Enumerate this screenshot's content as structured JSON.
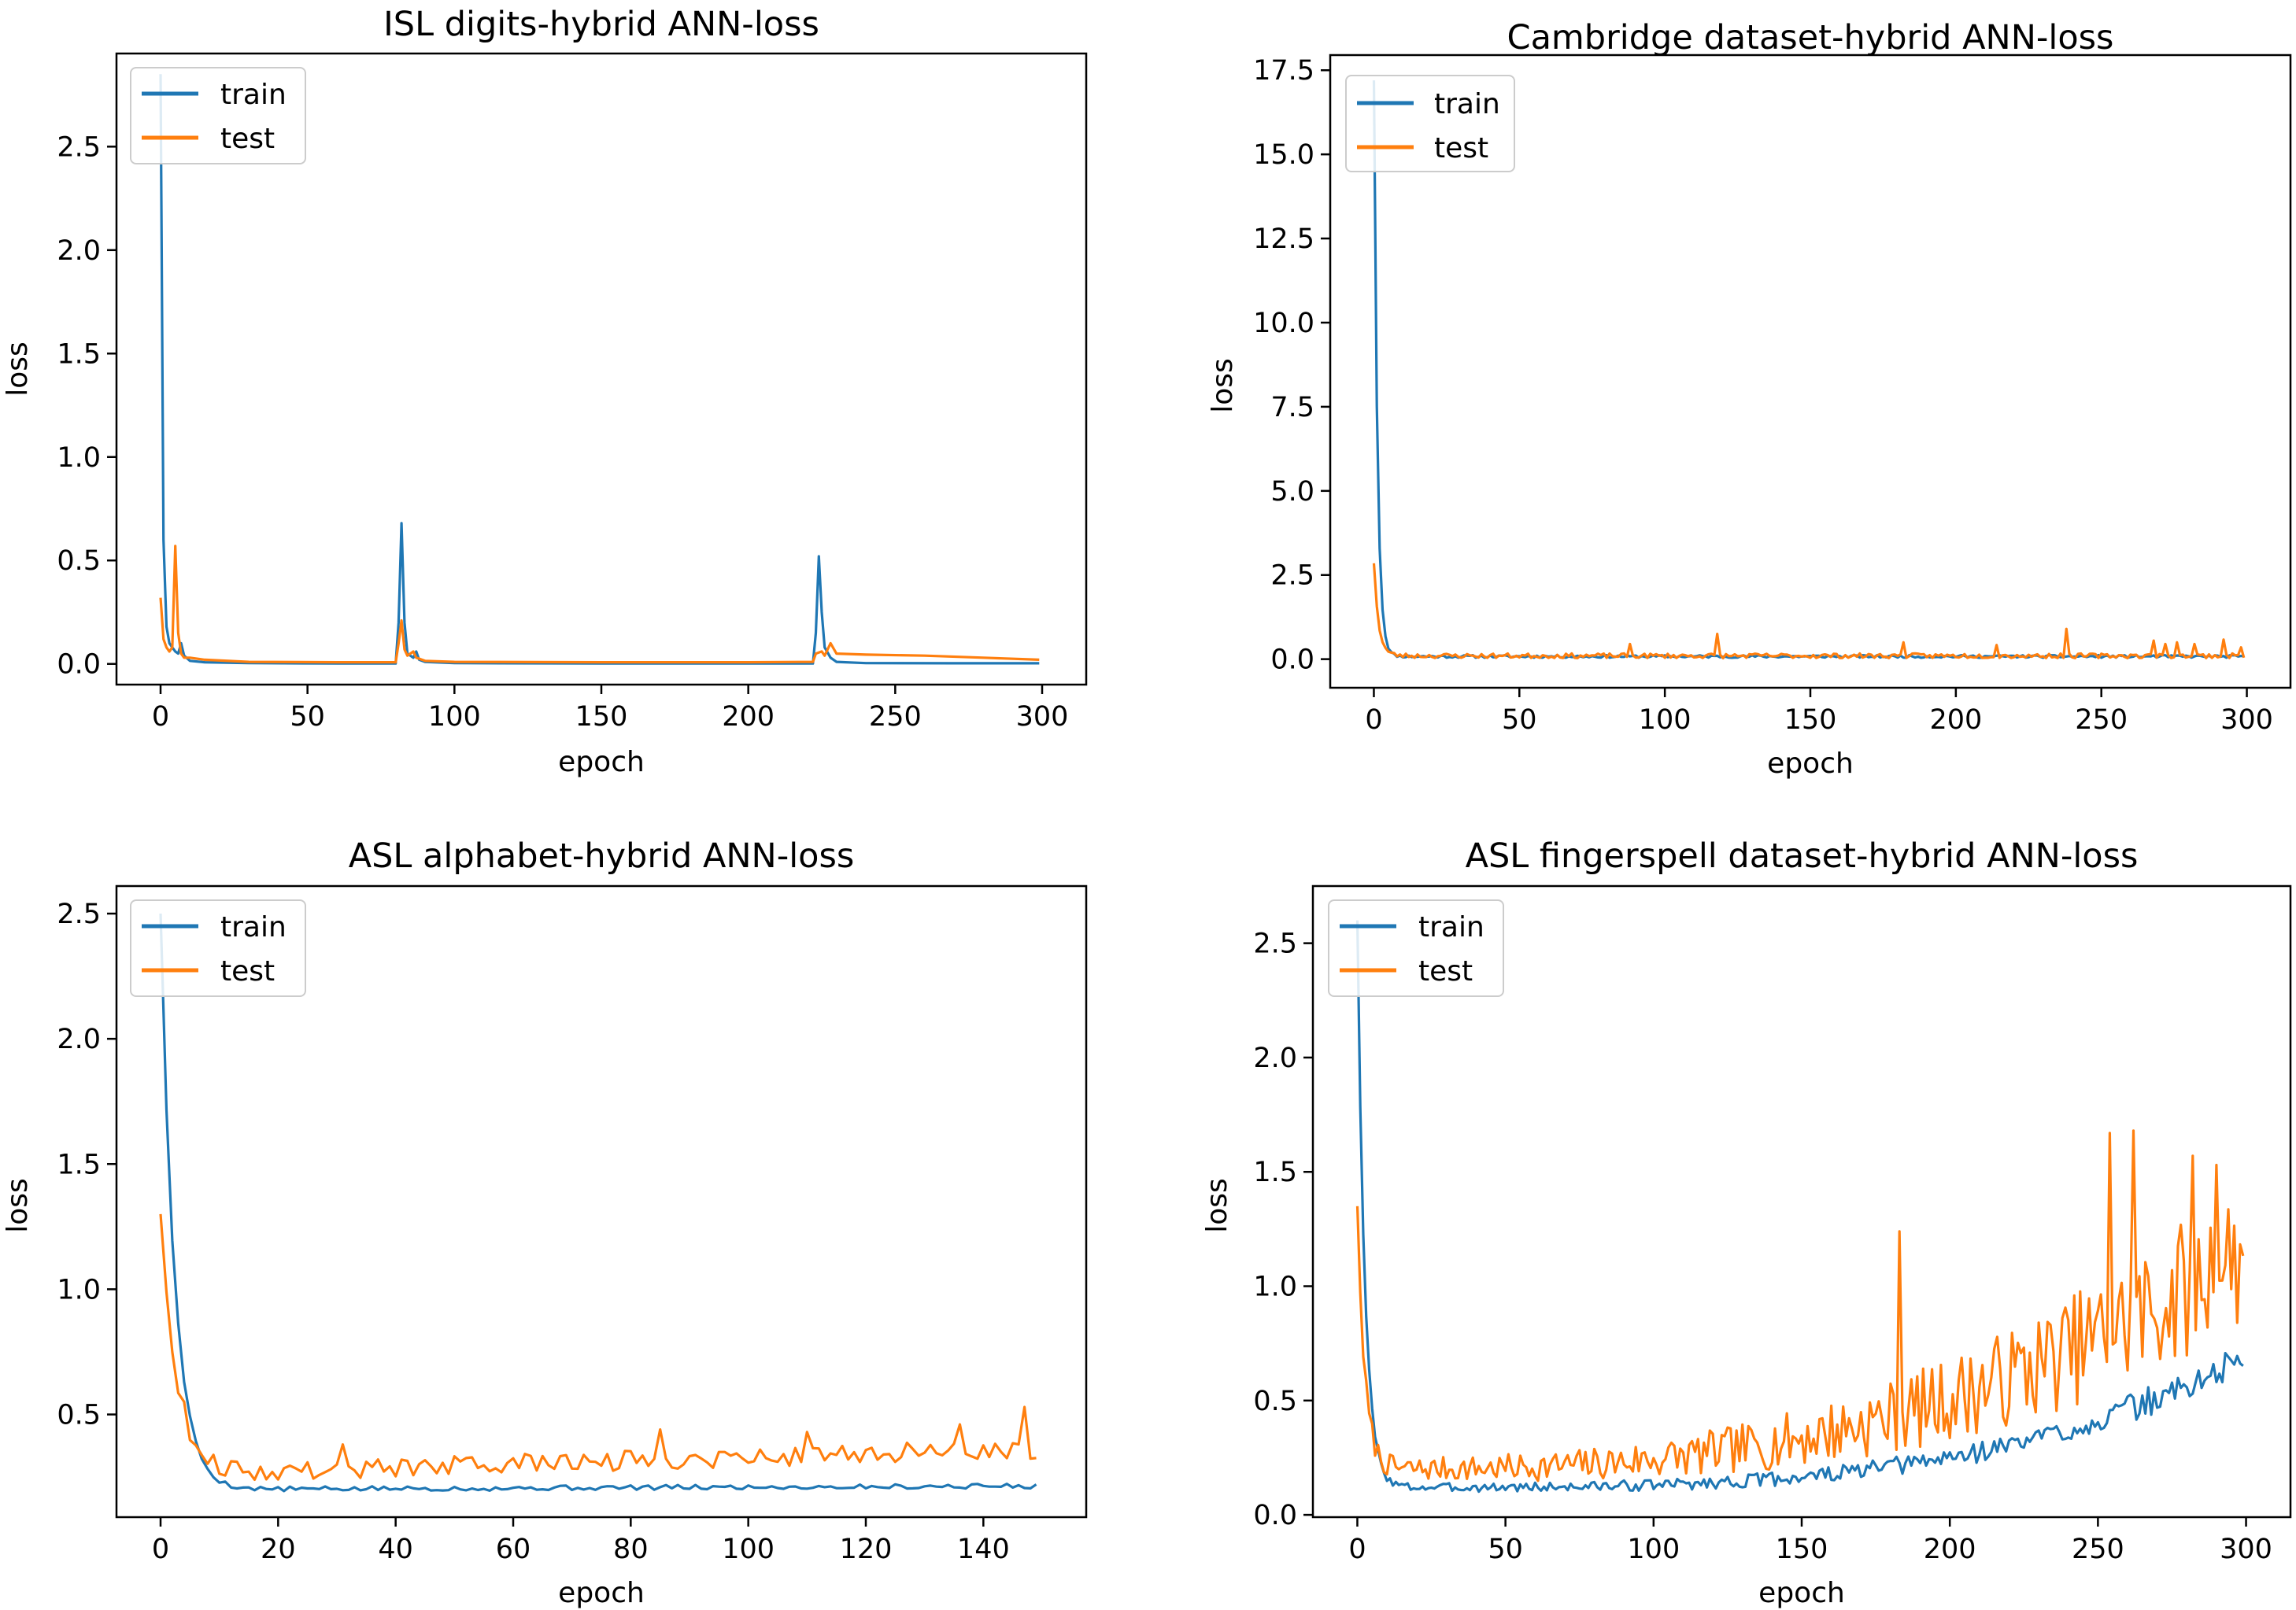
{
  "colors": {
    "train": "#1f77b4",
    "test": "#ff7f0e"
  },
  "chart_data": [
    {
      "type": "line",
      "title": "ISL digits-hybrid ANN-loss",
      "xlabel": "epoch",
      "ylabel": "loss",
      "xlim": [
        -15,
        315
      ],
      "ylim": [
        -0.1,
        2.95
      ],
      "xticks": [
        0,
        50,
        100,
        150,
        200,
        250,
        300
      ],
      "yticks": [
        0.0,
        0.5,
        1.0,
        1.5,
        2.0,
        2.5
      ],
      "ytick_labels": [
        "0.0",
        "0.5",
        "1.0",
        "1.5",
        "2.0",
        "2.5"
      ],
      "legend": {
        "position": "upper-left",
        "entries": [
          "train",
          "test"
        ]
      },
      "series": [
        {
          "name": "train",
          "color": "train",
          "points": [
            [
              0,
              2.85
            ],
            [
              1,
              0.6
            ],
            [
              2,
              0.18
            ],
            [
              3,
              0.1
            ],
            [
              4,
              0.08
            ],
            [
              5,
              0.06
            ],
            [
              6,
              0.05
            ],
            [
              7,
              0.1
            ],
            [
              8,
              0.04
            ],
            [
              10,
              0.015
            ],
            [
              15,
              0.008
            ],
            [
              30,
              0.004
            ],
            [
              60,
              0.002
            ],
            [
              80,
              0.002
            ],
            [
              81,
              0.2
            ],
            [
              82,
              0.68
            ],
            [
              83,
              0.2
            ],
            [
              84,
              0.05
            ],
            [
              86,
              0.03
            ],
            [
              87,
              0.06
            ],
            [
              88,
              0.02
            ],
            [
              90,
              0.01
            ],
            [
              100,
              0.004
            ],
            [
              150,
              0.002
            ],
            [
              200,
              0.002
            ],
            [
              222,
              0.002
            ],
            [
              223,
              0.15
            ],
            [
              224,
              0.52
            ],
            [
              225,
              0.25
            ],
            [
              226,
              0.08
            ],
            [
              228,
              0.03
            ],
            [
              230,
              0.01
            ],
            [
              240,
              0.004
            ],
            [
              270,
              0.003
            ],
            [
              299,
              0.003
            ]
          ]
        },
        {
          "name": "test",
          "color": "test",
          "points": [
            [
              0,
              0.32
            ],
            [
              1,
              0.12
            ],
            [
              2,
              0.08
            ],
            [
              3,
              0.06
            ],
            [
              4,
              0.08
            ],
            [
              5,
              0.57
            ],
            [
              6,
              0.15
            ],
            [
              7,
              0.05
            ],
            [
              8,
              0.03
            ],
            [
              10,
              0.03
            ],
            [
              15,
              0.02
            ],
            [
              30,
              0.01
            ],
            [
              60,
              0.008
            ],
            [
              80,
              0.008
            ],
            [
              81,
              0.1
            ],
            [
              82,
              0.21
            ],
            [
              83,
              0.07
            ],
            [
              84,
              0.04
            ],
            [
              86,
              0.06
            ],
            [
              87,
              0.03
            ],
            [
              90,
              0.015
            ],
            [
              100,
              0.01
            ],
            [
              150,
              0.008
            ],
            [
              200,
              0.008
            ],
            [
              222,
              0.01
            ],
            [
              223,
              0.05
            ],
            [
              225,
              0.06
            ],
            [
              226,
              0.04
            ],
            [
              228,
              0.1
            ],
            [
              230,
              0.05
            ],
            [
              240,
              0.045
            ],
            [
              260,
              0.04
            ],
            [
              280,
              0.03
            ],
            [
              299,
              0.02
            ]
          ]
        }
      ]
    },
    {
      "type": "line",
      "title": "Cambridge dataset-hybrid ANN-loss",
      "xlabel": "epoch",
      "ylabel": "loss",
      "xlim": [
        -15,
        315
      ],
      "ylim": [
        -0.85,
        17.95
      ],
      "xticks": [
        0,
        50,
        100,
        150,
        200,
        250,
        300
      ],
      "yticks": [
        0.0,
        2.5,
        5.0,
        7.5,
        10.0,
        12.5,
        15.0,
        17.5
      ],
      "ytick_labels": [
        "0.0",
        "2.5",
        "5.0",
        "7.5",
        "10.0",
        "12.5",
        "15.0",
        "17.5"
      ],
      "legend": {
        "position": "upper-left",
        "entries": [
          "train",
          "test"
        ]
      },
      "generated": {
        "train": {
          "start": 17.2,
          "floor": 0.08,
          "decay": 1.2,
          "noise": 0.04,
          "seed": 11,
          "spikes": []
        },
        "test": {
          "start": 2.85,
          "floor": 0.1,
          "decay": 1.6,
          "noise": 0.07,
          "seed": 23,
          "spikes": [
            [
              88,
              0.45
            ],
            [
              118,
              0.75
            ],
            [
              182,
              0.5
            ],
            [
              214,
              0.42
            ],
            [
              238,
              0.9
            ],
            [
              268,
              0.55
            ],
            [
              272,
              0.45
            ],
            [
              276,
              0.5
            ],
            [
              282,
              0.45
            ],
            [
              292,
              0.58
            ],
            [
              298,
              0.35
            ]
          ]
        }
      }
    },
    {
      "type": "line",
      "title": "ASL alphabet-hybrid ANN-loss",
      "xlabel": "epoch",
      "ylabel": "loss",
      "xlim": [
        -7.5,
        157.5
      ],
      "ylim": [
        0.09,
        2.61
      ],
      "xticks": [
        0,
        20,
        40,
        60,
        80,
        100,
        120,
        140
      ],
      "yticks": [
        0.5,
        1.0,
        1.5,
        2.0,
        2.5
      ],
      "ytick_labels": [
        "0.5",
        "1.0",
        "1.5",
        "2.0",
        "2.5"
      ],
      "legend": {
        "position": "upper-left",
        "entries": [
          "train",
          "test"
        ]
      },
      "generated": {
        "train": {
          "start": 2.5,
          "floor": 0.2,
          "decay": 2.4,
          "slope": 0.0001,
          "noise": 0.01,
          "seed": 5,
          "spikes": []
        },
        "test": {
          "start": 1.3,
          "floor": 0.26,
          "decay": 2.8,
          "slope": 0.0007,
          "noise": 0.04,
          "seed": 9,
          "spikes": [
            [
              31,
              0.38
            ],
            [
              85,
              0.44
            ],
            [
              110,
              0.43
            ],
            [
              136,
              0.46
            ],
            [
              147,
              0.53
            ]
          ]
        }
      }
    },
    {
      "type": "line",
      "title": "ASL fingerspell dataset-hybrid ANN-loss",
      "xlabel": "epoch",
      "ylabel": "loss",
      "xlim": [
        -15,
        315
      ],
      "ylim": [
        -0.01,
        2.75
      ],
      "xticks": [
        0,
        50,
        100,
        150,
        200,
        250,
        300
      ],
      "yticks": [
        0.0,
        0.5,
        1.0,
        1.5,
        2.0,
        2.5
      ],
      "ytick_labels": [
        "0.0",
        "0.5",
        "1.0",
        "1.5",
        "2.0",
        "2.5"
      ],
      "legend": {
        "position": "upper-left",
        "entries": [
          "train",
          "test"
        ]
      },
      "generated": {
        "train": {
          "start": 2.6,
          "floor": 0.12,
          "decay": 2.5,
          "growth": [
            0.56,
            3.6
          ],
          "noise": 0.018,
          "noise_growth": 0.06,
          "seed": 3,
          "spikes": []
        },
        "test": {
          "start": 1.35,
          "floor": 0.2,
          "decay": 2.5,
          "growth": [
            0.95,
            2.8
          ],
          "noise": 0.05,
          "noise_growth": 0.3,
          "seed": 7,
          "spikes": [
            [
              183,
              1.24
            ],
            [
              254,
              1.67
            ],
            [
              262,
              1.68
            ],
            [
              282,
              1.57
            ],
            [
              290,
              1.53
            ]
          ]
        }
      }
    }
  ]
}
